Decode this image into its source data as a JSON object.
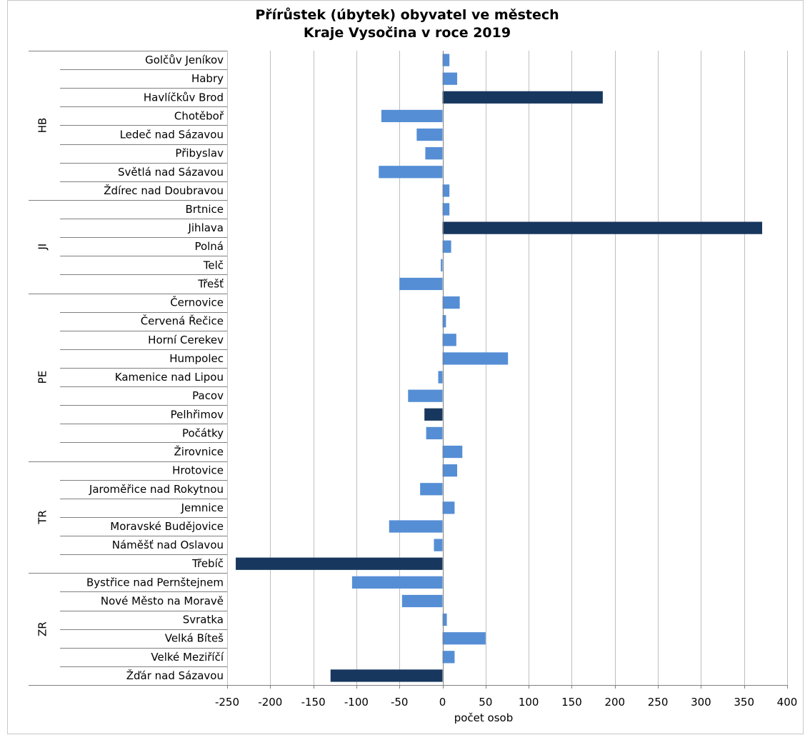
{
  "chart_data": {
    "type": "bar",
    "orientation": "horizontal",
    "title": [
      "Přírůstek (úbytek) obyvatel ve městech",
      "Kraje Vysočina v roce 2019"
    ],
    "xlabel": "počet osob",
    "xlim": [
      -250,
      400
    ],
    "xticks": [
      "-250",
      "-200",
      "-150",
      "-100",
      "-50",
      "0",
      "50",
      "100",
      "150",
      "200",
      "250",
      "300",
      "350",
      "400"
    ],
    "grid": true,
    "legend": "none",
    "colors": {
      "default": "#558ed5",
      "highlight": "#17375e"
    },
    "groups": [
      {
        "label": "HB",
        "categories": [
          "Golčův Jeníkov",
          "Habry",
          "Havlíčkův Brod",
          "Chotěboř",
          "Ledeč nad Sázavou",
          "Přibyslav",
          "Světlá nad Sázavou",
          "Ždírec nad Doubravou"
        ]
      },
      {
        "label": "JI",
        "categories": [
          "Brtnice",
          "Jihlava",
          "Polná",
          "Telč",
          "Třešť"
        ]
      },
      {
        "label": "PE",
        "categories": [
          "Černovice",
          "Červená Řečice",
          "Horní Cerekev",
          "Humpolec",
          "Kamenice nad Lipou",
          "Pacov",
          "Pelhřimov",
          "Počátky",
          "Žirovnice"
        ]
      },
      {
        "label": "TR",
        "categories": [
          "Hrotovice",
          "Jaroměřice nad Rokytnou",
          "Jemnice",
          "Moravské Budějovice",
          "Náměšť nad Oslavou",
          "Třebíč"
        ]
      },
      {
        "label": "ZR",
        "categories": [
          "Bystřice nad Pernštejnem",
          "Nové Město na Moravě",
          "Svratka",
          "Velká Bíteš",
          "Velké Meziříčí",
          "Žďár nad Sázavou"
        ]
      }
    ],
    "values": [
      8,
      17,
      186,
      -71,
      -30,
      -20,
      -74,
      8,
      8,
      371,
      10,
      -2,
      -50,
      20,
      4,
      16,
      76,
      -5,
      -40,
      -21,
      -19,
      23,
      17,
      -26,
      14,
      -62,
      -10,
      -240,
      -105,
      -47,
      5,
      50,
      14,
      -130
    ],
    "highlighted": [
      "Havlíčkův Brod",
      "Jihlava",
      "Pelhřimov",
      "Třebíč",
      "Žďár nad Sázavou"
    ]
  }
}
